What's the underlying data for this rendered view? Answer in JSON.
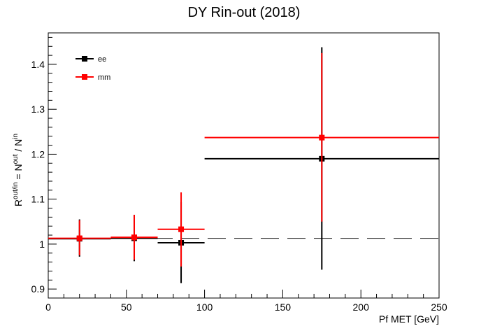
{
  "chart_data": {
    "type": "scatter",
    "title": "DY Rin-out (2018)",
    "xlabel": "Pf MET [GeV]",
    "ylabel": {
      "base": "R",
      "sup": "out/in",
      "mid": " = N",
      "sup2": "out",
      "end": " / N",
      "sup3": "in"
    },
    "xlim": [
      0,
      250
    ],
    "ylim": [
      0.88,
      1.47
    ],
    "xticks": [
      0,
      50,
      100,
      150,
      200,
      250
    ],
    "yticks": [
      0.9,
      1,
      1.1,
      1.2,
      1.3,
      1.4
    ],
    "ytick_labels": [
      "0.9",
      "1",
      "1.1",
      "1.2",
      "1.3",
      "1.4"
    ],
    "xtick_labels": [
      "0",
      "50",
      "100",
      "150",
      "200",
      "250"
    ],
    "grid": false,
    "legend_position": "top-left",
    "reference_line": {
      "y": 1.013,
      "style": "dashed",
      "color": "#000000"
    },
    "series": [
      {
        "name": "ee",
        "color": "#000000",
        "points": [
          {
            "x": 20,
            "xlo": 0,
            "xhi": 40,
            "y": 1.012,
            "ylo": 0.972,
            "yhi": 1.055
          },
          {
            "x": 55,
            "xlo": 40,
            "xhi": 70,
            "y": 1.013,
            "ylo": 0.962,
            "yhi": 1.065
          },
          {
            "x": 85,
            "xlo": 70,
            "xhi": 100,
            "y": 1.003,
            "ylo": 0.913,
            "yhi": 1.093
          },
          {
            "x": 175,
            "xlo": 100,
            "xhi": 250,
            "y": 1.19,
            "ylo": 0.943,
            "yhi": 1.438
          }
        ]
      },
      {
        "name": "mm",
        "color": "#ff0000",
        "points": [
          {
            "x": 20,
            "xlo": 0,
            "xhi": 40,
            "y": 1.013,
            "ylo": 0.975,
            "yhi": 1.053
          },
          {
            "x": 55,
            "xlo": 40,
            "xhi": 70,
            "y": 1.015,
            "ylo": 0.965,
            "yhi": 1.065
          },
          {
            "x": 85,
            "xlo": 70,
            "xhi": 100,
            "y": 1.033,
            "ylo": 0.95,
            "yhi": 1.115
          },
          {
            "x": 175,
            "xlo": 100,
            "xhi": 250,
            "y": 1.237,
            "ylo": 1.05,
            "yhi": 1.425
          }
        ]
      }
    ]
  }
}
